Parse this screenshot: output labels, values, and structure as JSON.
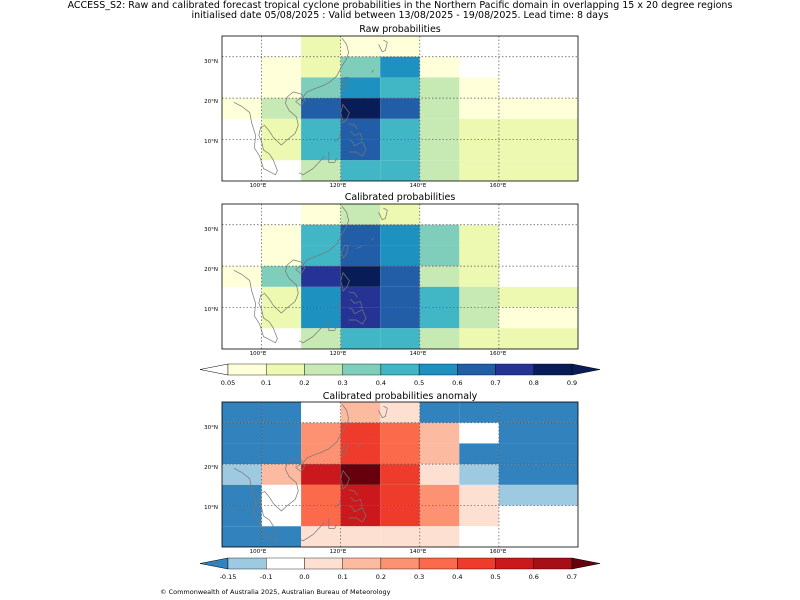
{
  "titles": {
    "line1": "ACCESS_S2: Raw and calibrated forecast tropical cyclone probabilities in the Northern Pacific domain in overlapping 15 x 20 degree regions",
    "line2": "initialised date 05/08/2025 :  Valid between 13/08/2025 - 19/08/2025. Lead time: 8 days"
  },
  "axes": {
    "x_ticks": [
      "100°E",
      "120°E",
      "140°E",
      "160°E"
    ],
    "y_ticks": [
      "30°N",
      "20°N",
      "10°N"
    ]
  },
  "prob_colorbar": {
    "ticks": [
      "0.05",
      "0.1",
      "0.2",
      "0.3",
      "0.4",
      "0.5",
      "0.6",
      "0.7",
      "0.8",
      "0.9"
    ],
    "colors": [
      "#ffffd9",
      "#edf8b1",
      "#c7e9b4",
      "#7fcdbb",
      "#41b6c4",
      "#1d91c0",
      "#225ea8",
      "#253494",
      "#081d58"
    ]
  },
  "anom_colorbar": {
    "ticks": [
      "-0.15",
      "-0.1",
      "0.0",
      "0.1",
      "0.2",
      "0.3",
      "0.4",
      "0.5",
      "0.6",
      "0.7"
    ],
    "colors": [
      "#9ecae1",
      "#ffffff",
      "#fee0d2",
      "#fcbba1",
      "#fc9272",
      "#fb6a4a",
      "#ef3b2c",
      "#cb181d",
      "#a50f15"
    ],
    "under_color": "#3182bd",
    "over_color": "#67000d"
  },
  "copyright": "© Commonwealth of Australia 2025, Australian Bureau of Meteorology",
  "chart_data": [
    {
      "type": "heatmap",
      "title": "Raw probabilities",
      "xlim": [
        90,
        180
      ],
      "ylim": [
        0,
        35
      ],
      "x_edges": [
        90,
        100,
        110,
        120,
        130,
        140,
        150,
        160,
        180
      ],
      "y_edges": [
        0,
        5,
        10,
        15,
        20,
        25,
        30,
        35
      ],
      "colorscale": "probability",
      "cell_color_index": [
        [
          -1,
          -1,
          1,
          0,
          0,
          -1,
          -1,
          -1
        ],
        [
          -1,
          0,
          1,
          3,
          5,
          0,
          -1,
          -1
        ],
        [
          -1,
          0,
          3,
          5,
          4,
          2,
          0,
          -1
        ],
        [
          0,
          2,
          6,
          8,
          6,
          2,
          0,
          0
        ],
        [
          -1,
          1,
          4,
          6,
          4,
          2,
          1,
          1
        ],
        [
          -1,
          1,
          4,
          6,
          4,
          2,
          1,
          1
        ],
        [
          -1,
          -1,
          2,
          4,
          4,
          2,
          1,
          1
        ]
      ]
    },
    {
      "type": "heatmap",
      "title": "Calibrated probabilities",
      "xlim": [
        90,
        180
      ],
      "ylim": [
        0,
        35
      ],
      "x_edges": [
        90,
        100,
        110,
        120,
        130,
        140,
        150,
        160,
        180
      ],
      "y_edges": [
        0,
        5,
        10,
        15,
        20,
        25,
        30,
        35
      ],
      "colorscale": "probability",
      "cell_color_index": [
        [
          -1,
          -1,
          0,
          2,
          1,
          -1,
          -1,
          -1
        ],
        [
          -1,
          0,
          4,
          6,
          5,
          3,
          1,
          -1
        ],
        [
          -1,
          0,
          4,
          6,
          5,
          3,
          1,
          -1
        ],
        [
          0,
          3,
          7,
          8,
          6,
          2,
          1,
          -1
        ],
        [
          -1,
          1,
          5,
          7,
          6,
          4,
          2,
          1
        ],
        [
          -1,
          1,
          5,
          7,
          6,
          4,
          2,
          0
        ],
        [
          -1,
          -1,
          2,
          4,
          4,
          2,
          1,
          1
        ]
      ]
    },
    {
      "type": "heatmap",
      "title": "Calibrated probabilities anomaly",
      "xlim": [
        90,
        180
      ],
      "ylim": [
        0,
        35
      ],
      "x_edges": [
        90,
        100,
        110,
        120,
        130,
        140,
        150,
        160,
        180
      ],
      "y_edges": [
        0,
        5,
        10,
        15,
        20,
        25,
        30,
        35
      ],
      "colorscale": "anomaly",
      "cell_color_index": [
        [
          -1,
          -1,
          1,
          3,
          2,
          -1,
          -1,
          -1
        ],
        [
          -1,
          -1,
          4,
          6,
          5,
          3,
          1,
          -1
        ],
        [
          -1,
          -1,
          4,
          6,
          5,
          3,
          -1,
          -1
        ],
        [
          0,
          3,
          7,
          9,
          6,
          2,
          0,
          -1
        ],
        [
          -1,
          1,
          5,
          7,
          6,
          4,
          2,
          0
        ],
        [
          -1,
          1,
          5,
          7,
          6,
          4,
          2,
          1
        ],
        [
          -1,
          -1,
          2,
          2,
          2,
          2,
          1,
          1
        ]
      ]
    }
  ]
}
